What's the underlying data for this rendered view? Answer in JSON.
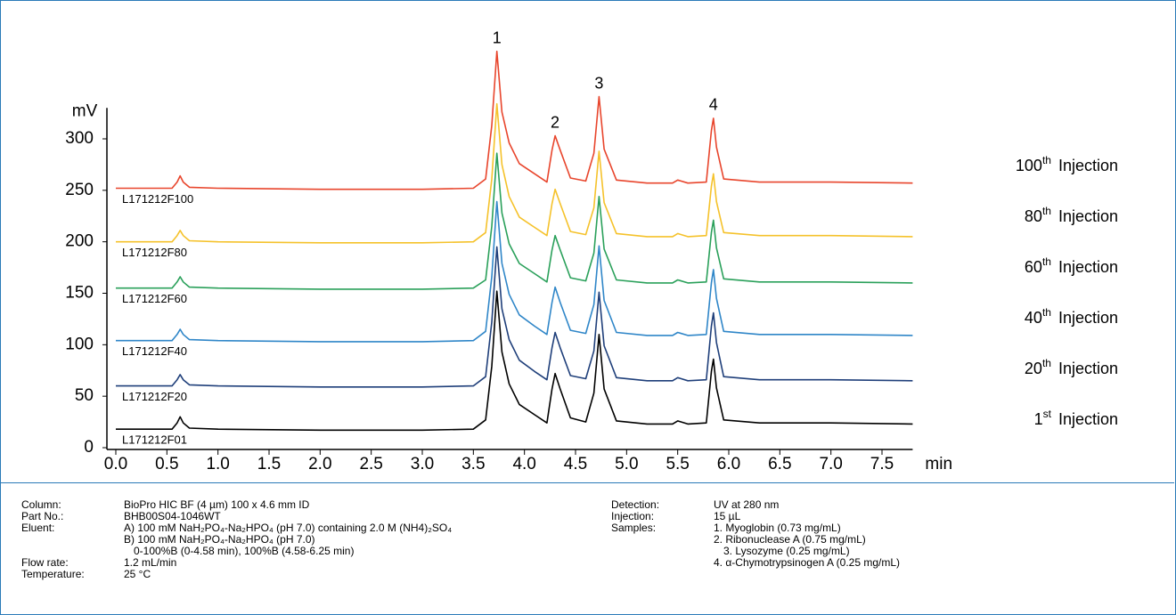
{
  "chart_data": {
    "type": "line",
    "y_label": "mV",
    "x_label": "min",
    "xlim": [
      0,
      7.8
    ],
    "xticks": [
      {
        "value": 0,
        "label": "0.0"
      },
      0.5,
      {
        "value": 1,
        "label": "1.0"
      },
      1.5,
      {
        "value": 2,
        "label": "2.0"
      },
      2.5,
      {
        "value": 3,
        "label": "3.0"
      },
      3.5,
      {
        "value": 4,
        "label": "4.0"
      },
      4.5,
      {
        "value": 5,
        "label": "5.0"
      },
      5.5,
      {
        "value": 6,
        "label": "6.0"
      },
      6.5,
      {
        "value": 7,
        "label": "7.0"
      },
      7.5
    ],
    "ylim": [
      0,
      330
    ],
    "yticks": [
      0,
      50,
      100,
      150,
      200,
      250,
      300
    ],
    "x": [
      0,
      0.3,
      0.55,
      0.6,
      0.63,
      0.66,
      0.72,
      1.0,
      2.0,
      3.0,
      3.5,
      3.62,
      3.68,
      3.73,
      3.78,
      3.85,
      3.95,
      4.1,
      4.22,
      4.27,
      4.3,
      4.35,
      4.45,
      4.6,
      4.68,
      4.73,
      4.78,
      4.9,
      5.2,
      5.45,
      5.5,
      5.6,
      5.78,
      5.83,
      5.85,
      5.88,
      5.95,
      6.3,
      7.0,
      7.8
    ],
    "series": [
      {
        "name": "L171212F01",
        "color": "#000000",
        "injection": {
          "number": "1",
          "suffix": "st",
          "text": "Injection"
        },
        "values": [
          18,
          18,
          18,
          24,
          30,
          24,
          19,
          18,
          17,
          17,
          18,
          27,
          79,
          152,
          93,
          62,
          42,
          32,
          24,
          57,
          72,
          57,
          29,
          25,
          53,
          110,
          57,
          26,
          23,
          23,
          26,
          23,
          24,
          74,
          86,
          58,
          27,
          24,
          24,
          23
        ]
      },
      {
        "name": "L171212F20",
        "color": "#1f3f7a",
        "injection": {
          "number": "20",
          "suffix": "th",
          "text": "Injection"
        },
        "values": [
          60,
          60,
          60,
          66,
          71,
          66,
          61,
          60,
          59,
          59,
          60,
          69,
          122,
          195,
          135,
          105,
          85,
          74,
          66,
          97,
          112,
          97,
          70,
          67,
          94,
          151,
          99,
          68,
          65,
          65,
          68,
          65,
          66,
          118,
          131,
          102,
          69,
          66,
          66,
          65
        ]
      },
      {
        "name": "L171212F40",
        "color": "#2f86c8",
        "injection": {
          "number": "40",
          "suffix": "th",
          "text": "Injection"
        },
        "values": [
          104,
          104,
          104,
          110,
          115,
          110,
          105,
          104,
          103,
          103,
          104,
          113,
          166,
          239,
          179,
          149,
          129,
          118,
          110,
          141,
          156,
          141,
          114,
          111,
          139,
          196,
          143,
          112,
          109,
          109,
          112,
          109,
          110,
          160,
          173,
          145,
          113,
          110,
          110,
          109
        ]
      },
      {
        "name": "L171212F60",
        "color": "#2aa05a",
        "injection": {
          "number": "60",
          "suffix": "th",
          "text": "Injection"
        },
        "values": [
          155,
          155,
          155,
          161,
          166,
          161,
          156,
          155,
          154,
          154,
          155,
          163,
          215,
          286,
          228,
          198,
          179,
          169,
          161,
          192,
          206,
          192,
          165,
          162,
          189,
          244,
          193,
          163,
          160,
          160,
          163,
          160,
          161,
          209,
          221,
          194,
          164,
          161,
          161,
          160
        ]
      },
      {
        "name": "L171212F80",
        "color": "#f5c22b",
        "injection": {
          "number": "80",
          "suffix": "th",
          "text": "Injection"
        },
        "values": [
          200,
          200,
          200,
          206,
          211,
          206,
          201,
          200,
          199,
          199,
          200,
          209,
          261,
          334,
          275,
          244,
          224,
          214,
          206,
          237,
          251,
          237,
          210,
          207,
          233,
          288,
          238,
          208,
          205,
          205,
          208,
          205,
          206,
          254,
          266,
          239,
          209,
          206,
          206,
          205
        ]
      },
      {
        "name": "L171212F100",
        "color": "#e8452c",
        "injection": {
          "number": "100",
          "suffix": "th",
          "text": "Injection"
        },
        "values": [
          252,
          252,
          252,
          258,
          264,
          258,
          253,
          252,
          251,
          251,
          252,
          261,
          313,
          385,
          326,
          296,
          276,
          266,
          258,
          289,
          303,
          289,
          262,
          259,
          286,
          341,
          290,
          260,
          257,
          257,
          260,
          257,
          258,
          308,
          320,
          292,
          261,
          258,
          258,
          257
        ]
      }
    ],
    "peaks": {
      "labels": [
        "1",
        "2",
        "3",
        "4"
      ],
      "x": [
        3.73,
        4.3,
        4.73,
        5.85
      ]
    }
  },
  "conditions": {
    "left": [
      {
        "label": "Column:",
        "lines": [
          "BioPro HIC BF (4 µm) 100 x 4.6 mm ID"
        ]
      },
      {
        "label": "Part No.:",
        "lines": [
          "BHB00S04-1046WT"
        ]
      },
      {
        "label": "Eluent:",
        "lines": [
          "A) 100 mM NaH₂PO₄-Na₂HPO₄ (pH 7.0) containing 2.0 M (NH4)₂SO₄",
          "B) 100 mM NaH₂PO₄-Na₂HPO₄ (pH 7.0)",
          "0-100%B (0-4.58 min), 100%B (4.58-6.25 min)"
        ]
      },
      {
        "label": "Flow rate:",
        "lines": [
          "1.2 mL/min"
        ]
      },
      {
        "label": "Temperature:",
        "lines": [
          "25 °C"
        ]
      }
    ],
    "right": [
      {
        "label": "Detection:",
        "lines": [
          "UV at 280 nm"
        ]
      },
      {
        "label": "Injection:",
        "lines": [
          "15 µL"
        ]
      },
      {
        "label": "Samples:",
        "lines": [
          "1. Myoglobin (0.73 mg/mL)",
          "2. Ribonuclease A (0.75 mg/mL)",
          "3. Lysozyme (0.25 mg/mL)",
          "4. α-Chymotrypsinogen A (0.25 mg/mL)"
        ]
      }
    ]
  }
}
